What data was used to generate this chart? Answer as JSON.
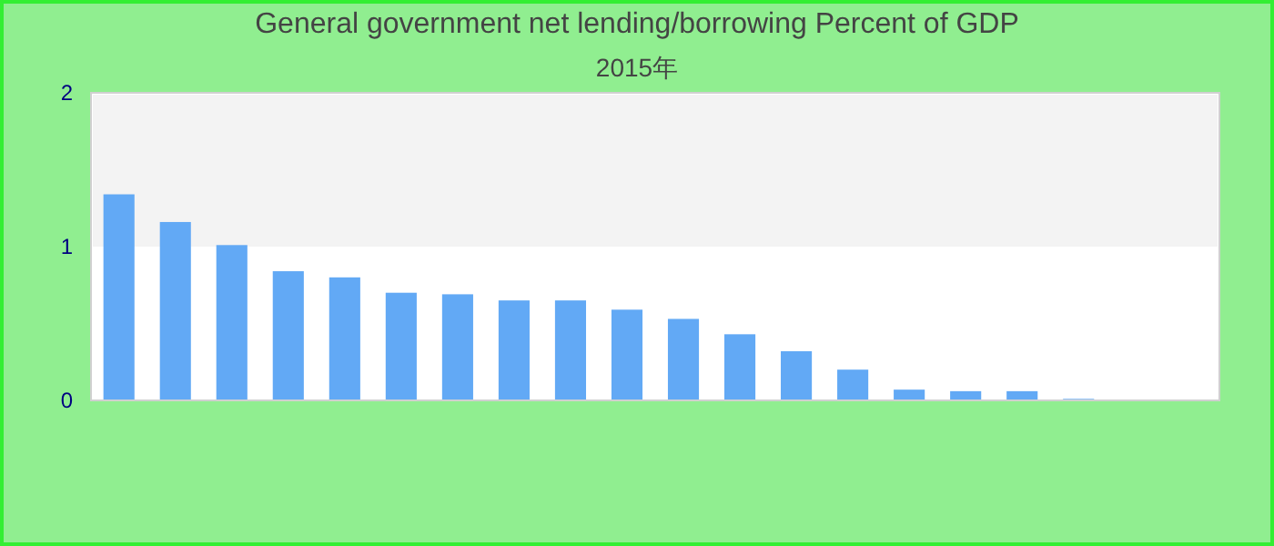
{
  "chart_data": {
    "type": "bar",
    "title": "General government net lending/borrowing  Percent of GDP",
    "subtitle": "2015年",
    "categories": [
      null,
      null,
      null,
      null,
      null,
      null,
      null,
      null,
      null,
      null,
      null,
      null,
      null,
      null,
      null,
      null,
      null,
      null,
      null,
      null
    ],
    "values": [
      1.34,
      1.16,
      1.01,
      0.84,
      0.8,
      0.7,
      0.69,
      0.65,
      0.65,
      0.59,
      0.53,
      0.43,
      0.32,
      0.2,
      0.07,
      0.06,
      0.06,
      0.01,
      0,
      0
    ],
    "color": "#62a9f5",
    "ylim": [
      0,
      2
    ],
    "yticks": [
      0,
      1,
      2
    ],
    "grid": false,
    "bands": [
      {
        "axis": "y",
        "from": 1,
        "to": 2,
        "color": "#f3f3f3"
      }
    ]
  }
}
